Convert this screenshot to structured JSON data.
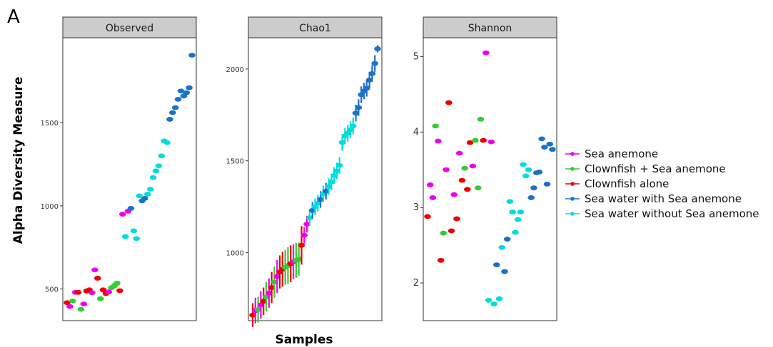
{
  "panel_label": "A",
  "ylabel": "Alpha Diversity Measure",
  "xlabel": "Samples",
  "colors": {
    "Sea anemone": "#ee00ee",
    "Clownfish + Sea anemone": "#33cc33",
    "Clownfish alone": "#ee0000",
    "Sea water with Sea anemone": "#1a72c8",
    "Sea water without Sea anemone": "#00dddd"
  },
  "legend": [
    {
      "label": "Sea anemone",
      "color": "#ee00ee"
    },
    {
      "label": "Clownfish + Sea anemone",
      "color": "#33cc33"
    },
    {
      "label": "Clownfish alone",
      "color": "#ee0000"
    },
    {
      "label": "Sea water with Sea anemone",
      "color": "#1a72c8"
    },
    {
      "label": "Sea water without Sea anemone",
      "color": "#00dddd"
    }
  ],
  "chart_data": [
    {
      "type": "scatter",
      "title": "Observed",
      "ylim": [
        310,
        2010
      ],
      "yticks": [
        500,
        1000,
        1500
      ],
      "ytick_labels": [
        "500",
        "1000",
        "1500"
      ],
      "points": [
        {
          "x": 1,
          "y": 418,
          "g": "Clownfish alone"
        },
        {
          "x": 2,
          "y": 395,
          "g": "Sea anemone"
        },
        {
          "x": 3,
          "y": 428,
          "g": "Clownfish + Sea anemone"
        },
        {
          "x": 4,
          "y": 480,
          "g": "Sea anemone"
        },
        {
          "x": 5,
          "y": 480,
          "g": "Clownfish alone"
        },
        {
          "x": 6,
          "y": 378,
          "g": "Clownfish + Sea anemone"
        },
        {
          "x": 7,
          "y": 410,
          "g": "Sea anemone"
        },
        {
          "x": 8,
          "y": 488,
          "g": "Clownfish alone"
        },
        {
          "x": 9,
          "y": 495,
          "g": "Clownfish alone"
        },
        {
          "x": 10,
          "y": 478,
          "g": "Sea anemone"
        },
        {
          "x": 11,
          "y": 615,
          "g": "Sea anemone"
        },
        {
          "x": 12,
          "y": 565,
          "g": "Clownfish alone"
        },
        {
          "x": 13,
          "y": 442,
          "g": "Clownfish + Sea anemone"
        },
        {
          "x": 14,
          "y": 495,
          "g": "Clownfish alone"
        },
        {
          "x": 15,
          "y": 473,
          "g": "Clownfish alone"
        },
        {
          "x": 16,
          "y": 483,
          "g": "Sea anemone"
        },
        {
          "x": 17,
          "y": 508,
          "g": "Clownfish + Sea anemone"
        },
        {
          "x": 18,
          "y": 520,
          "g": "Clownfish + Sea anemone"
        },
        {
          "x": 19,
          "y": 535,
          "g": "Clownfish + Sea anemone"
        },
        {
          "x": 20,
          "y": 490,
          "g": "Clownfish alone"
        },
        {
          "x": 21,
          "y": 950,
          "g": "Sea anemone"
        },
        {
          "x": 22,
          "y": 815,
          "g": "Sea water without Sea anemone"
        },
        {
          "x": 23,
          "y": 968,
          "g": "Sea anemone"
        },
        {
          "x": 24,
          "y": 985,
          "g": "Sea water with Sea anemone"
        },
        {
          "x": 25,
          "y": 850,
          "g": "Sea water without Sea anemone"
        },
        {
          "x": 26,
          "y": 803,
          "g": "Sea water without Sea anemone"
        },
        {
          "x": 27,
          "y": 1060,
          "g": "Sea water without Sea anemone"
        },
        {
          "x": 28,
          "y": 1030,
          "g": "Sea water with Sea anemone"
        },
        {
          "x": 29,
          "y": 1045,
          "g": "Sea water with Sea anemone"
        },
        {
          "x": 30,
          "y": 1070,
          "g": "Sea water without Sea anemone"
        },
        {
          "x": 31,
          "y": 1100,
          "g": "Sea water without Sea anemone"
        },
        {
          "x": 32,
          "y": 1170,
          "g": "Sea water without Sea anemone"
        },
        {
          "x": 33,
          "y": 1210,
          "g": "Sea water without Sea anemone"
        },
        {
          "x": 34,
          "y": 1240,
          "g": "Sea water without Sea anemone"
        },
        {
          "x": 35,
          "y": 1300,
          "g": "Sea water without Sea anemone"
        },
        {
          "x": 36,
          "y": 1390,
          "g": "Sea water without Sea anemone"
        },
        {
          "x": 37,
          "y": 1380,
          "g": "Sea water without Sea anemone"
        },
        {
          "x": 38,
          "y": 1520,
          "g": "Sea water with Sea anemone"
        },
        {
          "x": 39,
          "y": 1560,
          "g": "Sea water with Sea anemone"
        },
        {
          "x": 40,
          "y": 1590,
          "g": "Sea water with Sea anemone"
        },
        {
          "x": 41,
          "y": 1640,
          "g": "Sea water with Sea anemone"
        },
        {
          "x": 42,
          "y": 1690,
          "g": "Sea water with Sea anemone"
        },
        {
          "x": 43,
          "y": 1660,
          "g": "Sea water with Sea anemone"
        },
        {
          "x": 44,
          "y": 1680,
          "g": "Sea water with Sea anemone"
        },
        {
          "x": 45,
          "y": 1710,
          "g": "Sea water with Sea anemone"
        },
        {
          "x": 46,
          "y": 1905,
          "g": "Sea water with Sea anemone"
        }
      ]
    },
    {
      "type": "scatter",
      "title": "Chao1",
      "ylim": [
        630,
        2170
      ],
      "yticks": [
        1000,
        1500,
        2000
      ],
      "ytick_labels": [
        "1000",
        "1500",
        "2000"
      ],
      "points": [
        {
          "x": 1,
          "y": 660,
          "g": "Clownfish alone",
          "err": 65
        },
        {
          "x": 2,
          "y": 685,
          "g": "Sea anemone",
          "err": 70
        },
        {
          "x": 3,
          "y": 690,
          "g": "Clownfish + Sea anemone",
          "err": 70
        },
        {
          "x": 4,
          "y": 715,
          "g": "Sea anemone",
          "err": 75
        },
        {
          "x": 5,
          "y": 735,
          "g": "Clownfish alone",
          "err": 75
        },
        {
          "x": 6,
          "y": 760,
          "g": "Clownfish + Sea anemone",
          "err": 80
        },
        {
          "x": 7,
          "y": 780,
          "g": "Sea anemone",
          "err": 80
        },
        {
          "x": 8,
          "y": 810,
          "g": "Clownfish alone",
          "err": 85
        },
        {
          "x": 9,
          "y": 840,
          "g": "Clownfish + Sea anemone",
          "err": 85
        },
        {
          "x": 10,
          "y": 870,
          "g": "Sea anemone",
          "err": 90
        },
        {
          "x": 11,
          "y": 895,
          "g": "Clownfish alone",
          "err": 90
        },
        {
          "x": 12,
          "y": 910,
          "g": "Clownfish alone",
          "err": 95
        },
        {
          "x": 13,
          "y": 920,
          "g": "Clownfish + Sea anemone",
          "err": 95
        },
        {
          "x": 14,
          "y": 930,
          "g": "Clownfish + Sea anemone",
          "err": 100
        },
        {
          "x": 15,
          "y": 940,
          "g": "Clownfish alone",
          "err": 100
        },
        {
          "x": 16,
          "y": 950,
          "g": "Sea anemone",
          "err": 95
        },
        {
          "x": 17,
          "y": 958,
          "g": "Clownfish + Sea anemone",
          "err": 95
        },
        {
          "x": 18,
          "y": 965,
          "g": "Clownfish + Sea anemone",
          "err": 90
        },
        {
          "x": 19,
          "y": 1040,
          "g": "Clownfish alone",
          "err": 105
        },
        {
          "x": 20,
          "y": 1095,
          "g": "Sea anemone",
          "err": 45
        },
        {
          "x": 21,
          "y": 1155,
          "g": "Sea anemone",
          "err": 45
        },
        {
          "x": 22,
          "y": 1190,
          "g": "Sea water without Sea anemone",
          "err": 45
        },
        {
          "x": 23,
          "y": 1230,
          "g": "Sea water with Sea anemone",
          "err": 45
        },
        {
          "x": 24,
          "y": 1250,
          "g": "Sea water without Sea anemone",
          "err": 45
        },
        {
          "x": 25,
          "y": 1270,
          "g": "Sea water without Sea anemone",
          "err": 45
        },
        {
          "x": 26,
          "y": 1290,
          "g": "Sea water with Sea anemone",
          "err": 45
        },
        {
          "x": 27,
          "y": 1320,
          "g": "Sea water without Sea anemone",
          "err": 45
        },
        {
          "x": 28,
          "y": 1335,
          "g": "Sea water with Sea anemone",
          "err": 45
        },
        {
          "x": 29,
          "y": 1360,
          "g": "Sea water without Sea anemone",
          "err": 45
        },
        {
          "x": 30,
          "y": 1385,
          "g": "Sea water without Sea anemone",
          "err": 45
        },
        {
          "x": 31,
          "y": 1420,
          "g": "Sea water without Sea anemone",
          "err": 45
        },
        {
          "x": 32,
          "y": 1445,
          "g": "Sea water without Sea anemone",
          "err": 45
        },
        {
          "x": 33,
          "y": 1475,
          "g": "Sea water without Sea anemone",
          "err": 45
        },
        {
          "x": 34,
          "y": 1600,
          "g": "Sea water without Sea anemone",
          "err": 45
        },
        {
          "x": 35,
          "y": 1635,
          "g": "Sea water without Sea anemone",
          "err": 45
        },
        {
          "x": 36,
          "y": 1650,
          "g": "Sea water without Sea anemone",
          "err": 45
        },
        {
          "x": 37,
          "y": 1670,
          "g": "Sea water without Sea anemone",
          "err": 45
        },
        {
          "x": 38,
          "y": 1690,
          "g": "Sea water without Sea anemone",
          "err": 45
        },
        {
          "x": 39,
          "y": 1760,
          "g": "Sea water with Sea anemone",
          "err": 45
        },
        {
          "x": 40,
          "y": 1790,
          "g": "Sea water with Sea anemone",
          "err": 45
        },
        {
          "x": 41,
          "y": 1860,
          "g": "Sea water with Sea anemone",
          "err": 45
        },
        {
          "x": 42,
          "y": 1880,
          "g": "Sea water with Sea anemone",
          "err": 45
        },
        {
          "x": 43,
          "y": 1895,
          "g": "Sea water with Sea anemone",
          "err": 45
        },
        {
          "x": 44,
          "y": 1940,
          "g": "Sea water with Sea anemone",
          "err": 45
        },
        {
          "x": 45,
          "y": 1975,
          "g": "Sea water with Sea anemone",
          "err": 45
        },
        {
          "x": 46,
          "y": 2030,
          "g": "Sea water with Sea anemone",
          "err": 45
        },
        {
          "x": 47,
          "y": 2110,
          "g": "Sea water with Sea anemone",
          "err": 20
        }
      ]
    },
    {
      "type": "scatter",
      "title": "Shannon",
      "ylim": [
        1.5,
        5.25
      ],
      "yticks": [
        2,
        3,
        4,
        5
      ],
      "ytick_labels": [
        "2",
        "3",
        "4",
        "5"
      ],
      "points": [
        {
          "x": 1,
          "y": 2.88,
          "g": "Clownfish alone"
        },
        {
          "x": 2,
          "y": 3.3,
          "g": "Sea anemone"
        },
        {
          "x": 3,
          "y": 3.13,
          "g": "Sea anemone"
        },
        {
          "x": 4,
          "y": 4.08,
          "g": "Clownfish + Sea anemone"
        },
        {
          "x": 5,
          "y": 3.88,
          "g": "Sea anemone"
        },
        {
          "x": 6,
          "y": 2.3,
          "g": "Clownfish alone"
        },
        {
          "x": 7,
          "y": 2.66,
          "g": "Clownfish + Sea anemone"
        },
        {
          "x": 8,
          "y": 3.5,
          "g": "Sea anemone"
        },
        {
          "x": 9,
          "y": 4.39,
          "g": "Clownfish alone"
        },
        {
          "x": 10,
          "y": 2.69,
          "g": "Clownfish alone"
        },
        {
          "x": 11,
          "y": 3.17,
          "g": "Sea anemone"
        },
        {
          "x": 12,
          "y": 2.85,
          "g": "Clownfish alone"
        },
        {
          "x": 13,
          "y": 3.72,
          "g": "Sea anemone"
        },
        {
          "x": 14,
          "y": 3.36,
          "g": "Clownfish alone"
        },
        {
          "x": 15,
          "y": 3.52,
          "g": "Clownfish + Sea anemone"
        },
        {
          "x": 16,
          "y": 3.24,
          "g": "Clownfish alone"
        },
        {
          "x": 17,
          "y": 3.86,
          "g": "Clownfish alone"
        },
        {
          "x": 18,
          "y": 3.55,
          "g": "Sea anemone"
        },
        {
          "x": 19,
          "y": 3.89,
          "g": "Clownfish + Sea anemone"
        },
        {
          "x": 20,
          "y": 3.26,
          "g": "Clownfish + Sea anemone"
        },
        {
          "x": 21,
          "y": 4.17,
          "g": "Clownfish + Sea anemone"
        },
        {
          "x": 22,
          "y": 3.89,
          "g": "Clownfish alone"
        },
        {
          "x": 23,
          "y": 5.05,
          "g": "Sea anemone"
        },
        {
          "x": 24,
          "y": 1.77,
          "g": "Sea water without Sea anemone"
        },
        {
          "x": 25,
          "y": 3.87,
          "g": "Sea anemone"
        },
        {
          "x": 26,
          "y": 1.72,
          "g": "Sea water without Sea anemone"
        },
        {
          "x": 27,
          "y": 2.24,
          "g": "Sea water with Sea anemone"
        },
        {
          "x": 28,
          "y": 1.79,
          "g": "Sea water without Sea anemone"
        },
        {
          "x": 29,
          "y": 2.47,
          "g": "Sea water without Sea anemone"
        },
        {
          "x": 30,
          "y": 2.15,
          "g": "Sea water with Sea anemone"
        },
        {
          "x": 31,
          "y": 2.58,
          "g": "Sea water with Sea anemone"
        },
        {
          "x": 32,
          "y": 3.08,
          "g": "Sea water without Sea anemone"
        },
        {
          "x": 33,
          "y": 2.94,
          "g": "Sea water without Sea anemone"
        },
        {
          "x": 34,
          "y": 2.67,
          "g": "Sea water without Sea anemone"
        },
        {
          "x": 35,
          "y": 2.84,
          "g": "Sea water without Sea anemone"
        },
        {
          "x": 36,
          "y": 2.94,
          "g": "Sea water without Sea anemone"
        },
        {
          "x": 37,
          "y": 3.57,
          "g": "Sea water without Sea anemone"
        },
        {
          "x": 38,
          "y": 3.42,
          "g": "Sea water without Sea anemone"
        },
        {
          "x": 39,
          "y": 3.5,
          "g": "Sea water without Sea anemone"
        },
        {
          "x": 40,
          "y": 3.13,
          "g": "Sea water with Sea anemone"
        },
        {
          "x": 41,
          "y": 3.26,
          "g": "Sea water with Sea anemone"
        },
        {
          "x": 42,
          "y": 3.46,
          "g": "Sea water with Sea anemone"
        },
        {
          "x": 43,
          "y": 3.47,
          "g": "Sea water with Sea anemone"
        },
        {
          "x": 44,
          "y": 3.91,
          "g": "Sea water with Sea anemone"
        },
        {
          "x": 45,
          "y": 3.8,
          "g": "Sea water with Sea anemone"
        },
        {
          "x": 46,
          "y": 3.31,
          "g": "Sea water with Sea anemone"
        },
        {
          "x": 47,
          "y": 3.84,
          "g": "Sea water with Sea anemone"
        },
        {
          "x": 48,
          "y": 3.77,
          "g": "Sea water with Sea anemone"
        }
      ]
    }
  ]
}
